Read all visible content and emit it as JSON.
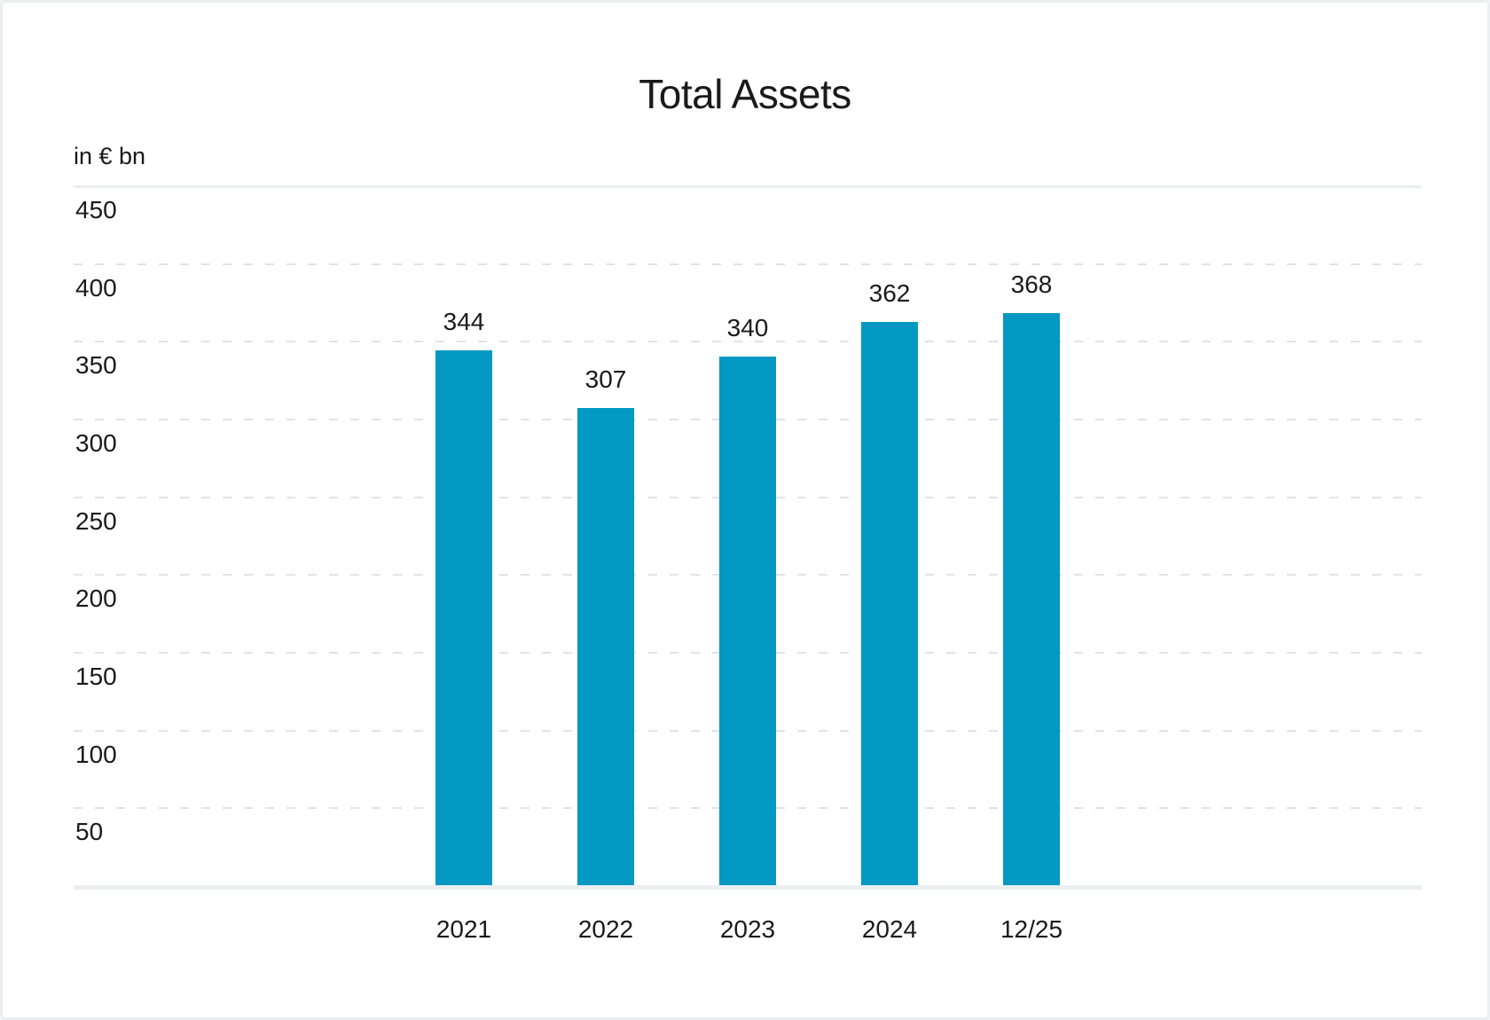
{
  "chart_data": {
    "type": "bar",
    "title": "Total Assets",
    "unit_label": "in € bn",
    "categories": [
      "2021",
      "2022",
      "2023",
      "2024",
      "12/25"
    ],
    "values": [
      344,
      307,
      340,
      362,
      368
    ],
    "ylim": [
      0,
      450
    ],
    "ytick_step": 50,
    "yticks": [
      450,
      400,
      350,
      300,
      250,
      200,
      150,
      100,
      50
    ],
    "grid": "horizontal, dashed; solid line at top (450) and baseline (0)",
    "legend": "none",
    "colors": {
      "bar": "#0499c2",
      "text": "#1a1a1a",
      "grid_dashed": "#e3e3e3",
      "axis_solid": "#ebeef0",
      "card_border": "#eceef0",
      "background": "#ffffff"
    }
  }
}
